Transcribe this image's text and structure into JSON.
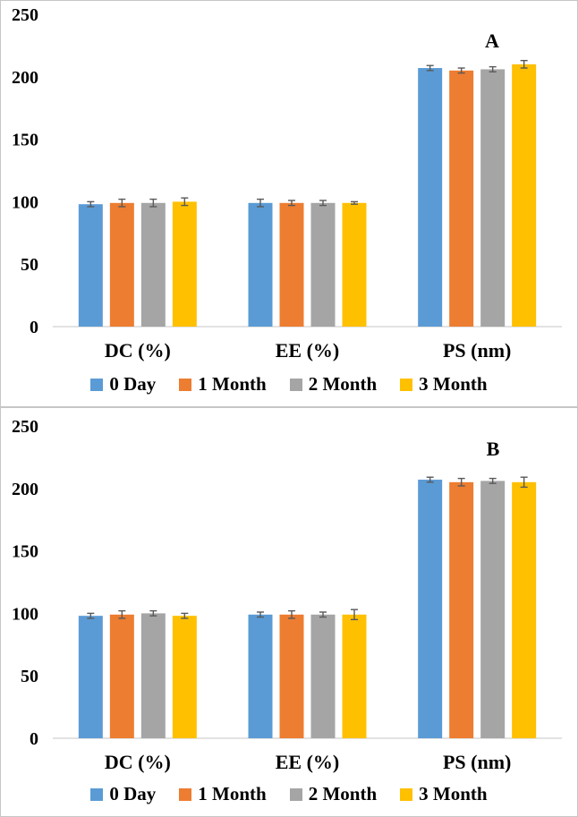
{
  "palette": {
    "series_blue": "#5B9BD5",
    "series_orange": "#ED7D31",
    "series_gray": "#A5A5A5",
    "series_yellow": "#FFC000",
    "error_bar": "#595959",
    "axis_line": "#D9D9D9",
    "text": "#000000",
    "panel_border": "#C6C6C6"
  },
  "chart_data": [
    {
      "type": "bar",
      "panel_label": "A",
      "title": "",
      "xlabel": "",
      "ylabel": "",
      "categories": [
        "DC (%)",
        "EE (%)",
        "PS (nm)"
      ],
      "series": [
        {
          "name": "0 Day",
          "color": "#5B9BD5",
          "values": [
            98,
            99,
            207
          ],
          "errors": [
            2,
            3,
            2
          ]
        },
        {
          "name": "1 Month",
          "color": "#ED7D31",
          "values": [
            99,
            99,
            205
          ],
          "errors": [
            3,
            2,
            2
          ]
        },
        {
          "name": "2 Month",
          "color": "#A5A5A5",
          "values": [
            99,
            99,
            206
          ],
          "errors": [
            3,
            2,
            2
          ]
        },
        {
          "name": "3 Month",
          "color": "#FFC000",
          "values": [
            100,
            99,
            210
          ],
          "errors": [
            3,
            1,
            3
          ]
        }
      ],
      "ylim": [
        0,
        250
      ],
      "yticks": [
        0,
        50,
        100,
        150,
        200,
        250
      ],
      "grid": false,
      "legend_position": "bottom",
      "panel_label_pos": {
        "x": 549,
        "y": 52
      }
    },
    {
      "type": "bar",
      "panel_label": "B",
      "title": "",
      "xlabel": "",
      "ylabel": "",
      "categories": [
        "DC (%)",
        "EE (%)",
        "PS (nm)"
      ],
      "series": [
        {
          "name": "0 Day",
          "color": "#5B9BD5",
          "values": [
            98,
            99,
            207
          ],
          "errors": [
            2,
            2,
            2
          ]
        },
        {
          "name": "1 Month",
          "color": "#ED7D31",
          "values": [
            99,
            99,
            205
          ],
          "errors": [
            3,
            3,
            3
          ]
        },
        {
          "name": "2 Month",
          "color": "#A5A5A5",
          "values": [
            100,
            99,
            206
          ],
          "errors": [
            2,
            2,
            2
          ]
        },
        {
          "name": "3 Month",
          "color": "#FFC000",
          "values": [
            98,
            99,
            205
          ],
          "errors": [
            2,
            4,
            4
          ]
        }
      ],
      "ylim": [
        0,
        250
      ],
      "yticks": [
        0,
        50,
        100,
        150,
        200,
        250
      ],
      "grid": false,
      "legend_position": "bottom",
      "panel_label_pos": {
        "x": 550,
        "y": 48
      }
    }
  ]
}
